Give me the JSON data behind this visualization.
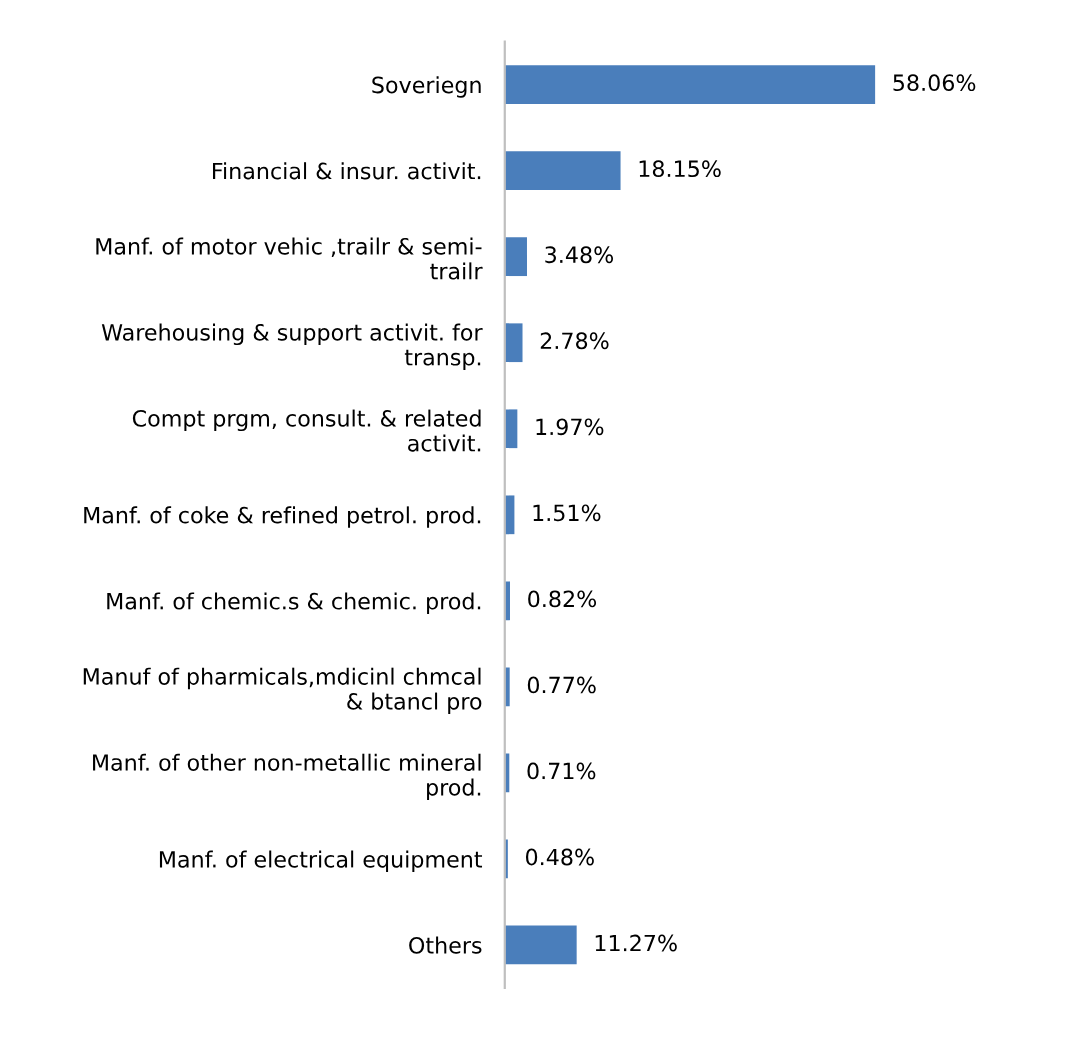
{
  "chart_data": {
    "type": "bar",
    "orientation": "horizontal",
    "categories": [
      "Soveriegn",
      "Financial & insur. activit.",
      "Manf. of motor vehic ,trailr & semi-\ntrailr",
      "Warehousing & support activit. for\ntransp.",
      "Compt prgm, consult. & related\nactivit.",
      "Manf. of coke & refined petrol. prod.",
      "Manf. of chemic.s & chemic. prod.",
      "Manuf of pharmicals,mdicinl chmcal\n& btancl pro",
      "Manf. of other non-metallic mineral\nprod.",
      "Manf. of electrical equipment",
      "Others"
    ],
    "values": [
      58.06,
      18.15,
      3.48,
      2.78,
      1.97,
      1.51,
      0.82,
      0.77,
      0.71,
      0.48,
      11.27
    ],
    "value_labels": [
      "58.06%",
      "18.15%",
      "3.48%",
      "2.78%",
      "1.97%",
      "1.51%",
      "0.82%",
      "0.77%",
      "0.71%",
      "0.48%",
      "11.27%"
    ],
    "color": "#4a7ebb"
  }
}
